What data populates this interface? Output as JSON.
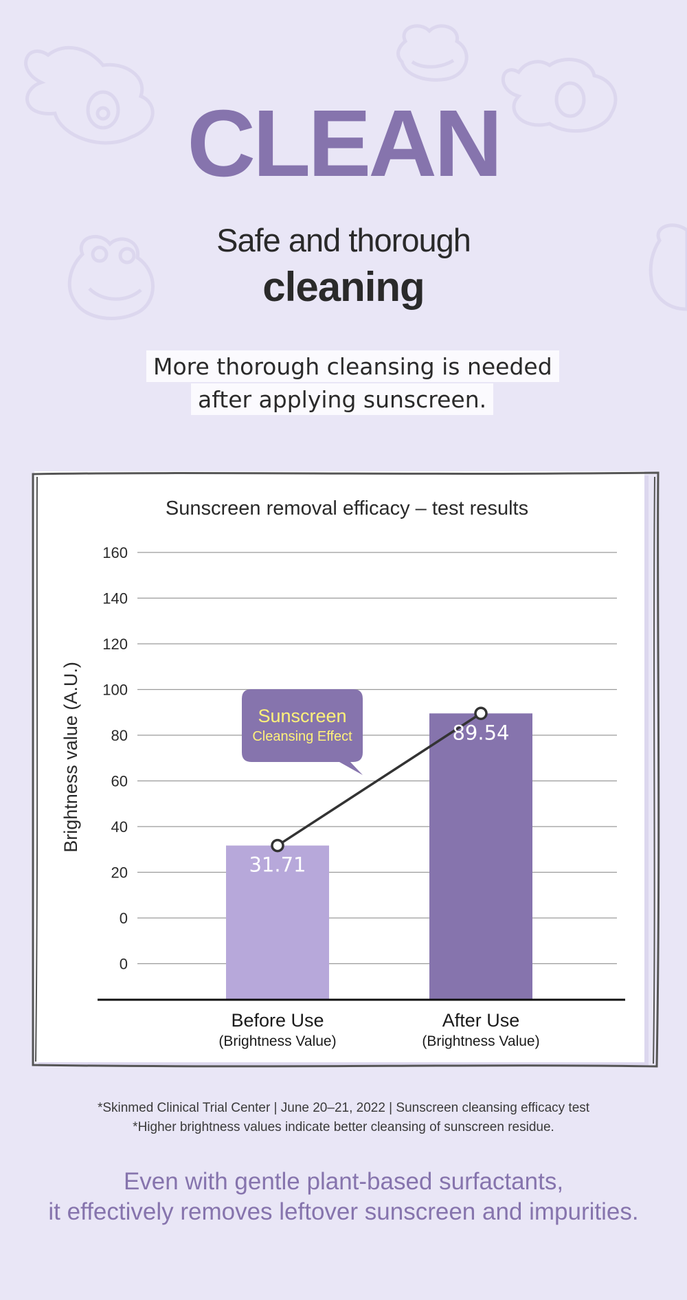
{
  "header": {
    "title": "CLEAN",
    "subtitle_line1": "Safe and thorough",
    "subtitle_line2": "cleaning"
  },
  "highlight": {
    "line1": "More thorough cleansing is needed",
    "line2": "after applying sunscreen."
  },
  "chart_data": {
    "type": "bar",
    "title": "Sunscreen removal efficacy – test results",
    "ylabel": "Brightness value (A.U.)",
    "xlabel": "",
    "ylim": [
      -20,
      160
    ],
    "ytick_labels": [
      "160",
      "140",
      "120",
      "100",
      "80",
      "60",
      "40",
      "20",
      "0",
      "0"
    ],
    "grid": true,
    "categories": [
      "Before Use",
      "After Use"
    ],
    "category_sublabels": [
      "(Brightness Value)",
      "(Brightness Value)"
    ],
    "values": [
      31.71,
      89.54
    ],
    "value_labels": [
      "31.71",
      "89.54"
    ],
    "bar_colors": [
      "#b7a8da",
      "#8674ad"
    ],
    "trend_line": true,
    "callout": {
      "line1": "Sunscreen",
      "line2": "Cleansing Effect"
    }
  },
  "footnotes": {
    "line1": "*Skinmed Clinical Trial Center | June 20–21, 2022 | Sunscreen cleansing efficacy test",
    "line2": "*Higher brightness values indicate better cleansing of sunscreen residue."
  },
  "closing": {
    "line1": "Even with gentle plant-based surfactants,",
    "line2": "it effectively removes leftover sunscreen and impurities."
  },
  "colors": {
    "background": "#e9e6f6",
    "accent": "#8674ad",
    "bar_light": "#b7a8da",
    "callout_text": "#fff27a"
  }
}
